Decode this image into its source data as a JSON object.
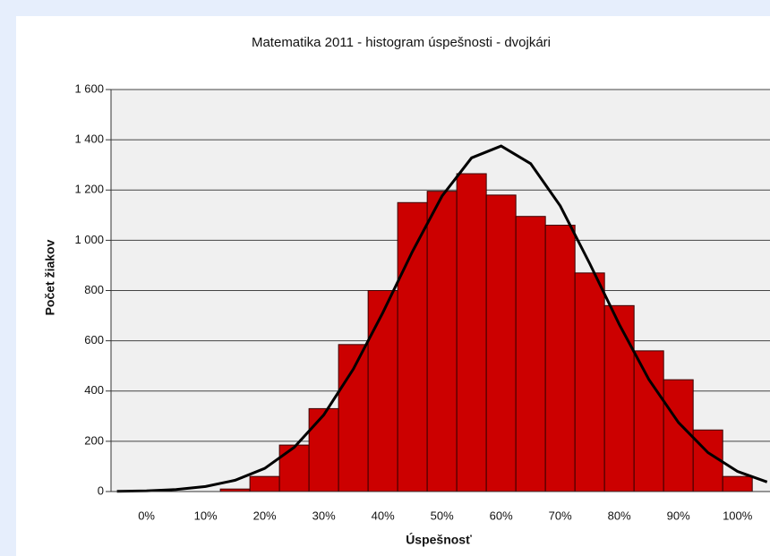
{
  "chart_data": {
    "type": "histogram",
    "title": "Matematika 2011 - histogram úspešnosti - dvojkári",
    "x_label": "Úspešnosť",
    "y_label": "Počet žiakov",
    "bins": [
      12.5,
      17.5,
      22.5,
      27.5,
      32.5,
      37.5,
      42.5,
      47.5,
      52.5,
      57.5,
      62.5,
      67.5,
      72.5,
      77.5,
      82.5,
      87.5,
      92.5,
      97.5,
      102.5
    ],
    "values": [
      10,
      60,
      185,
      330,
      585,
      800,
      1150,
      1195,
      1265,
      1180,
      1095,
      1060,
      870,
      740,
      560,
      445,
      245,
      60
    ],
    "color": "#cc0000",
    "curve": {
      "x": [
        -5,
        0,
        5,
        10,
        15,
        20,
        25,
        30,
        35,
        40,
        45,
        50,
        55,
        60,
        65,
        70,
        75,
        80,
        85,
        90,
        95,
        100,
        105
      ],
      "values": [
        1,
        3,
        8,
        20,
        45,
        92,
        176,
        305,
        487,
        712,
        955,
        1176,
        1328,
        1375,
        1305,
        1137,
        907,
        665,
        446,
        275,
        155,
        80,
        38
      ],
      "color": "#000000"
    },
    "xlim": [
      -6,
      105.5
    ],
    "xticks": [
      {
        "value": 0,
        "label": "0%"
      },
      {
        "value": 10,
        "label": "10%"
      },
      {
        "value": 20,
        "label": "20%"
      },
      {
        "value": 30,
        "label": "30%"
      },
      {
        "value": 40,
        "label": "40%"
      },
      {
        "value": 50,
        "label": "50%"
      },
      {
        "value": 60,
        "label": "60%"
      },
      {
        "value": 70,
        "label": "70%"
      },
      {
        "value": 80,
        "label": "80%"
      },
      {
        "value": 90,
        "label": "90%"
      },
      {
        "value": 100,
        "label": "100%"
      }
    ],
    "ylim": [
      0,
      1600
    ],
    "yticks": [
      0,
      200,
      400,
      600,
      800,
      {
        "value": 1000,
        "label": "1 000"
      },
      {
        "value": 1200,
        "label": "1 200"
      },
      {
        "value": 1400,
        "label": "1 400"
      },
      {
        "value": 1600,
        "label": "1 600"
      }
    ],
    "grid": true
  }
}
